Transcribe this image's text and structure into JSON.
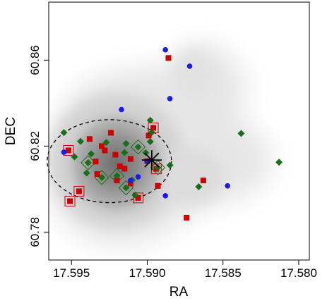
{
  "chart_data": {
    "type": "scatter",
    "title": "",
    "xlabel": "RA",
    "ylabel": "DEC",
    "xlim": [
      17.5965,
      17.5793
    ],
    "ylim": [
      60.767,
      60.887
    ],
    "x_reversed": true,
    "x_ticks": [
      17.595,
      17.59,
      17.585,
      17.58
    ],
    "x_tick_labels": [
      "17.595",
      "17.590",
      "17.585",
      "17.580"
    ],
    "y_ticks": [
      60.78,
      60.82,
      60.86
    ],
    "y_tick_labels": [
      "60.78",
      "60.82",
      "60.86"
    ],
    "grid": false,
    "legend": null,
    "colors": {
      "red": "#cc0000",
      "green": "#1a6e1a",
      "blue": "#1a1aee",
      "density_light": "#ececec",
      "density_dark": "#6f6f6f",
      "ellipse": "#000000"
    },
    "density_center": [
      17.5925,
      60.813
    ],
    "ellipse": {
      "center": [
        17.5925,
        60.813
      ],
      "semi_axis_ra": 0.0041,
      "semi_axis_dec": 0.0193
    },
    "cross_marker": [
      17.5897,
      60.8135
    ],
    "series": [
      {
        "marker": "square",
        "color": "#cc0000",
        "points": [
          [
            17.5886,
            60.861
          ],
          [
            17.5938,
            60.8233
          ],
          [
            17.5924,
            60.8262
          ],
          [
            17.593,
            60.82
          ],
          [
            17.5921,
            60.816
          ],
          [
            17.5911,
            60.814
          ],
          [
            17.59,
            60.813
          ],
          [
            17.5894,
            60.8094
          ],
          [
            17.5952,
            60.818
          ],
          [
            17.5934,
            60.8128
          ],
          [
            17.5918,
            60.8106
          ],
          [
            17.5933,
            60.807
          ],
          [
            17.5915,
            60.8095
          ],
          [
            17.5911,
            60.8026
          ],
          [
            17.592,
            60.804
          ],
          [
            17.5945,
            60.799
          ],
          [
            17.5951,
            60.7944
          ],
          [
            17.5906,
            60.7959
          ],
          [
            17.5893,
            60.8015
          ],
          [
            17.5863,
            60.804
          ],
          [
            17.5874,
            60.7867
          ],
          [
            17.5896,
            60.8285
          ],
          [
            17.5899,
            60.8249
          ],
          [
            17.5928,
            60.818
          ]
        ]
      },
      {
        "marker": "diamond",
        "color": "#1a6e1a",
        "points": [
          [
            17.5955,
            60.8263
          ],
          [
            17.5944,
            60.8222
          ],
          [
            17.5937,
            60.8164
          ],
          [
            17.5948,
            60.815
          ],
          [
            17.5927,
            60.8217
          ],
          [
            17.5914,
            60.8212
          ],
          [
            17.5906,
            60.8196
          ],
          [
            17.5898,
            60.832
          ],
          [
            17.5897,
            60.8264
          ],
          [
            17.5898,
            60.8221
          ],
          [
            17.5901,
            60.8169
          ],
          [
            17.5893,
            60.81
          ],
          [
            17.5939,
            60.8123
          ],
          [
            17.594,
            60.8075
          ],
          [
            17.593,
            60.8054
          ],
          [
            17.592,
            60.8062
          ],
          [
            17.5914,
            60.8006
          ],
          [
            17.5908,
            60.7972
          ],
          [
            17.5915,
            60.817
          ],
          [
            17.5866,
            60.8011
          ],
          [
            17.5838,
            60.8259
          ],
          [
            17.5813,
            60.8125
          ],
          [
            17.5885,
            60.8111
          ],
          [
            17.591,
            60.8042
          ]
        ]
      },
      {
        "marker": "circle",
        "color": "#1a1aee",
        "points": [
          [
            17.5888,
            60.8648
          ],
          [
            17.5872,
            60.8572
          ],
          [
            17.5885,
            60.8421
          ],
          [
            17.5917,
            60.837
          ],
          [
            17.5955,
            60.8172
          ],
          [
            17.59,
            60.813
          ],
          [
            17.5911,
            60.804
          ],
          [
            17.5906,
            60.8057
          ],
          [
            17.5888,
            60.7969
          ],
          [
            17.5847,
            60.8015
          ]
        ]
      }
    ],
    "highlighted": [
      {
        "marker": "square",
        "color": "#cc0000",
        "points": [
          [
            17.5952,
            60.818
          ],
          [
            17.5896,
            60.8285
          ],
          [
            17.5951,
            60.7944
          ],
          [
            17.5945,
            60.799
          ],
          [
            17.5906,
            60.7959
          ],
          [
            17.5894,
            60.8094
          ]
        ]
      },
      {
        "marker": "diamond",
        "color": "#1a6e1a",
        "points": [
          [
            17.5939,
            60.8123
          ],
          [
            17.593,
            60.8054
          ],
          [
            17.5914,
            60.8006
          ],
          [
            17.5906,
            60.8196
          ],
          [
            17.5893,
            60.81
          ],
          [
            17.592,
            60.8062
          ]
        ]
      }
    ]
  }
}
